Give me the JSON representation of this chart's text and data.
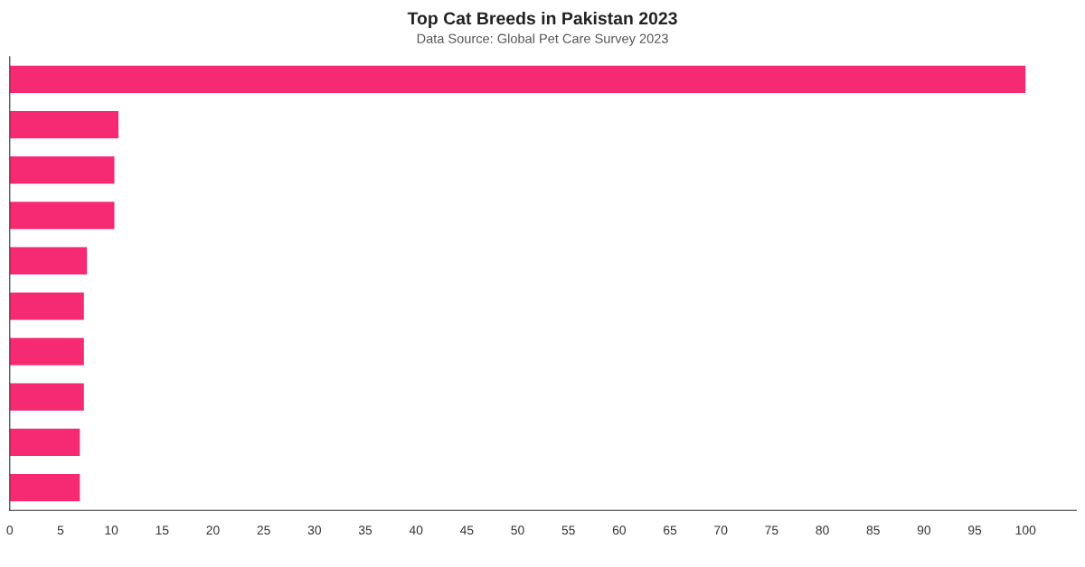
{
  "chart_data": {
    "type": "bar",
    "orientation": "horizontal",
    "title": "Top Cat Breeds in Pakistan 2023",
    "subtitle": "Data Source: Global Pet Care Survey 2023",
    "categories": [
      null,
      null,
      null,
      null,
      null,
      null,
      null,
      null,
      null,
      null
    ],
    "values": [
      100,
      10.7,
      10.3,
      10.3,
      7.6,
      7.3,
      7.3,
      7.3,
      6.9,
      6.9
    ],
    "color": "#f62a72",
    "xlim": [
      0,
      105
    ],
    "xticks": [
      0,
      5,
      10,
      15,
      20,
      25,
      30,
      35,
      40,
      45,
      50,
      55,
      60,
      65,
      70,
      75,
      80,
      85,
      90,
      95,
      100
    ],
    "grid": false,
    "legend": false
  }
}
